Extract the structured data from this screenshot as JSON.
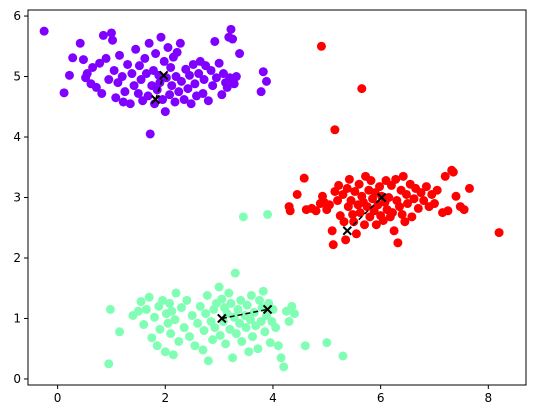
{
  "chart_data": {
    "type": "scatter",
    "title": "",
    "xlabel": "",
    "ylabel": "",
    "xlim": [
      -0.55,
      8.7
    ],
    "ylim": [
      -0.1,
      6.1
    ],
    "xticks": [
      0,
      2,
      4,
      6,
      8
    ],
    "yticks": [
      0,
      1,
      2,
      3,
      4,
      5,
      6
    ],
    "grid": false,
    "legend": "none",
    "series": [
      {
        "color": "#8000ff",
        "points": [
          [
            -0.25,
            5.75
          ],
          [
            0.12,
            4.73
          ],
          [
            0.22,
            5.02
          ],
          [
            0.28,
            5.31
          ],
          [
            0.42,
            5.55
          ],
          [
            0.48,
            5.28
          ],
          [
            0.52,
            4.98
          ],
          [
            0.55,
            5.05
          ],
          [
            0.62,
            4.88
          ],
          [
            0.65,
            5.15
          ],
          [
            0.72,
            4.82
          ],
          [
            0.78,
            5.22
          ],
          [
            0.82,
            4.72
          ],
          [
            0.85,
            5.68
          ],
          [
            0.9,
            5.3
          ],
          [
            0.95,
            4.95
          ],
          [
            1.0,
            5.72
          ],
          [
            1.02,
            5.6
          ],
          [
            1.05,
            5.1
          ],
          [
            1.08,
            4.65
          ],
          [
            1.12,
            4.9
          ],
          [
            1.15,
            5.35
          ],
          [
            1.2,
            5.0
          ],
          [
            1.22,
            4.58
          ],
          [
            1.25,
            4.75
          ],
          [
            1.3,
            5.2
          ],
          [
            1.35,
            4.55
          ],
          [
            1.38,
            5.05
          ],
          [
            1.42,
            4.85
          ],
          [
            1.45,
            5.45
          ],
          [
            1.5,
            4.72
          ],
          [
            1.52,
            5.18
          ],
          [
            1.55,
            4.95
          ],
          [
            1.58,
            4.6
          ],
          [
            1.62,
            5.3
          ],
          [
            1.65,
            5.05
          ],
          [
            1.68,
            4.68
          ],
          [
            1.7,
            5.55
          ],
          [
            1.72,
            4.05
          ],
          [
            1.75,
            4.85
          ],
          [
            1.78,
            5.1
          ],
          [
            1.8,
            4.55
          ],
          [
            1.82,
            5.38
          ],
          [
            1.85,
            4.78
          ],
          [
            1.88,
            5.02
          ],
          [
            1.9,
            4.9
          ],
          [
            1.92,
            5.65
          ],
          [
            1.95,
            4.62
          ],
          [
            1.98,
            5.25
          ],
          [
            2.0,
            4.42
          ],
          [
            2.02,
            4.98
          ],
          [
            2.05,
            5.48
          ],
          [
            2.08,
            4.7
          ],
          [
            2.1,
            5.15
          ],
          [
            2.12,
            4.85
          ],
          [
            2.15,
            5.32
          ],
          [
            2.18,
            4.58
          ],
          [
            2.2,
            5.0
          ],
          [
            2.22,
            5.4
          ],
          [
            2.25,
            4.75
          ],
          [
            2.28,
            5.55
          ],
          [
            2.3,
            4.92
          ],
          [
            2.35,
            4.62
          ],
          [
            2.38,
            5.12
          ],
          [
            2.42,
            4.8
          ],
          [
            2.45,
            5.02
          ],
          [
            2.48,
            4.55
          ],
          [
            2.52,
            5.2
          ],
          [
            2.55,
            4.88
          ],
          [
            2.58,
            4.68
          ],
          [
            2.62,
            5.05
          ],
          [
            2.65,
            5.25
          ],
          [
            2.7,
            4.72
          ],
          [
            2.72,
            4.95
          ],
          [
            2.75,
            5.18
          ],
          [
            2.8,
            4.6
          ],
          [
            2.85,
            5.1
          ],
          [
            2.88,
            4.85
          ],
          [
            2.92,
            5.58
          ],
          [
            2.95,
            4.98
          ],
          [
            3.0,
            5.22
          ],
          [
            3.05,
            4.7
          ],
          [
            3.08,
            5.05
          ],
          [
            3.12,
            4.9
          ],
          [
            3.15,
            4.82
          ],
          [
            3.18,
            5.65
          ],
          [
            3.2,
            4.98
          ],
          [
            3.22,
            5.78
          ],
          [
            3.25,
            5.62
          ],
          [
            3.28,
            4.88
          ],
          [
            3.32,
            5.0
          ],
          [
            3.38,
            5.38
          ],
          [
            3.78,
            4.75
          ],
          [
            3.82,
            5.08
          ],
          [
            3.88,
            4.92
          ]
        ]
      },
      {
        "color": "#ff0000",
        "points": [
          [
            4.9,
            5.5
          ],
          [
            5.15,
            4.12
          ],
          [
            5.65,
            4.8
          ],
          [
            4.3,
            2.85
          ],
          [
            4.32,
            2.78
          ],
          [
            4.45,
            3.05
          ],
          [
            4.58,
            3.32
          ],
          [
            4.62,
            2.8
          ],
          [
            4.72,
            2.82
          ],
          [
            4.8,
            2.78
          ],
          [
            4.88,
            2.9
          ],
          [
            4.92,
            3.02
          ],
          [
            4.95,
            2.92
          ],
          [
            5.0,
            2.8
          ],
          [
            5.05,
            2.88
          ],
          [
            5.1,
            2.45
          ],
          [
            5.12,
            2.22
          ],
          [
            5.15,
            3.1
          ],
          [
            5.2,
            2.95
          ],
          [
            5.22,
            3.2
          ],
          [
            5.25,
            2.7
          ],
          [
            5.3,
            3.05
          ],
          [
            5.32,
            2.6
          ],
          [
            5.35,
            2.3
          ],
          [
            5.38,
            3.15
          ],
          [
            5.4,
            2.85
          ],
          [
            5.42,
            3.3
          ],
          [
            5.45,
            2.95
          ],
          [
            5.48,
            2.72
          ],
          [
            5.5,
            2.6
          ],
          [
            5.52,
            3.1
          ],
          [
            5.55,
            2.4
          ],
          [
            5.58,
            2.88
          ],
          [
            5.6,
            3.22
          ],
          [
            5.62,
            2.75
          ],
          [
            5.65,
            3.02
          ],
          [
            5.68,
            2.92
          ],
          [
            5.7,
            2.55
          ],
          [
            5.72,
            3.35
          ],
          [
            5.75,
            2.85
          ],
          [
            5.78,
            3.12
          ],
          [
            5.8,
            2.68
          ],
          [
            5.82,
            3.28
          ],
          [
            5.85,
            2.98
          ],
          [
            5.88,
            2.78
          ],
          [
            5.9,
            3.08
          ],
          [
            5.92,
            2.55
          ],
          [
            5.95,
            2.88
          ],
          [
            5.98,
            3.18
          ],
          [
            6.0,
            2.7
          ],
          [
            6.02,
            3.02
          ],
          [
            6.05,
            2.62
          ],
          [
            6.08,
            2.92
          ],
          [
            6.1,
            3.28
          ],
          [
            6.12,
            2.8
          ],
          [
            6.15,
            3.0
          ],
          [
            6.18,
            2.68
          ],
          [
            6.2,
            3.2
          ],
          [
            6.22,
            2.75
          ],
          [
            6.25,
            2.45
          ],
          [
            6.28,
            3.3
          ],
          [
            6.3,
            2.95
          ],
          [
            6.32,
            2.25
          ],
          [
            6.35,
            2.85
          ],
          [
            6.38,
            3.12
          ],
          [
            6.4,
            2.72
          ],
          [
            6.42,
            3.35
          ],
          [
            6.45,
            2.6
          ],
          [
            6.48,
            3.05
          ],
          [
            6.5,
            2.9
          ],
          [
            6.55,
            3.22
          ],
          [
            6.58,
            2.68
          ],
          [
            6.62,
            2.98
          ],
          [
            6.65,
            3.15
          ],
          [
            6.7,
            2.82
          ],
          [
            6.75,
            3.08
          ],
          [
            6.8,
            2.95
          ],
          [
            6.85,
            3.18
          ],
          [
            6.9,
            2.85
          ],
          [
            6.95,
            3.05
          ],
          [
            7.0,
            2.9
          ],
          [
            7.05,
            3.12
          ],
          [
            7.15,
            2.75
          ],
          [
            7.2,
            3.35
          ],
          [
            7.25,
            2.78
          ],
          [
            7.32,
            3.45
          ],
          [
            7.35,
            3.42
          ],
          [
            7.4,
            3.02
          ],
          [
            7.48,
            2.85
          ],
          [
            7.55,
            2.8
          ],
          [
            7.65,
            3.15
          ],
          [
            8.2,
            2.42
          ]
        ]
      },
      {
        "color": "#80ffb4",
        "points": [
          [
            0.95,
            0.25
          ],
          [
            0.98,
            1.15
          ],
          [
            1.15,
            0.78
          ],
          [
            1.4,
            1.05
          ],
          [
            1.5,
            1.12
          ],
          [
            1.55,
            1.28
          ],
          [
            1.6,
            0.9
          ],
          [
            1.65,
            1.15
          ],
          [
            1.7,
            1.35
          ],
          [
            1.75,
            0.68
          ],
          [
            1.8,
            1.02
          ],
          [
            1.85,
            0.55
          ],
          [
            1.88,
            1.2
          ],
          [
            1.9,
            0.82
          ],
          [
            1.95,
            1.3
          ],
          [
            2.0,
            0.45
          ],
          [
            2.02,
            1.08
          ],
          [
            2.05,
            0.92
          ],
          [
            2.08,
            1.25
          ],
          [
            2.1,
            0.75
          ],
          [
            2.12,
            1.12
          ],
          [
            2.15,
            0.4
          ],
          [
            2.18,
            0.98
          ],
          [
            2.2,
            1.42
          ],
          [
            2.25,
            0.62
          ],
          [
            2.3,
            1.18
          ],
          [
            2.35,
            0.85
          ],
          [
            2.4,
            1.3
          ],
          [
            2.45,
            0.7
          ],
          [
            2.5,
            1.05
          ],
          [
            2.55,
            0.55
          ],
          [
            2.6,
            0.92
          ],
          [
            2.65,
            1.2
          ],
          [
            2.7,
            0.48
          ],
          [
            2.72,
            0.8
          ],
          [
            2.75,
            1.08
          ],
          [
            2.78,
            1.38
          ],
          [
            2.8,
            0.3
          ],
          [
            2.85,
            0.95
          ],
          [
            2.88,
            0.65
          ],
          [
            2.9,
            1.15
          ],
          [
            2.92,
            0.85
          ],
          [
            2.95,
            1.25
          ],
          [
            3.0,
            1.52
          ],
          [
            3.02,
            0.72
          ],
          [
            3.05,
            1.32
          ],
          [
            3.08,
            0.95
          ],
          [
            3.1,
            1.18
          ],
          [
            3.12,
            0.58
          ],
          [
            3.15,
            1.08
          ],
          [
            3.18,
            1.42
          ],
          [
            3.2,
            0.82
          ],
          [
            3.22,
            1.25
          ],
          [
            3.25,
            0.35
          ],
          [
            3.28,
            1.02
          ],
          [
            3.3,
            1.75
          ],
          [
            3.32,
            0.75
          ],
          [
            3.35,
            1.15
          ],
          [
            3.38,
            0.92
          ],
          [
            3.4,
            1.3
          ],
          [
            3.42,
            0.62
          ],
          [
            3.45,
            2.68
          ],
          [
            3.48,
            1.05
          ],
          [
            3.5,
            0.85
          ],
          [
            3.52,
            1.22
          ],
          [
            3.55,
            0.45
          ],
          [
            3.58,
            0.98
          ],
          [
            3.6,
            1.38
          ],
          [
            3.62,
            0.7
          ],
          [
            3.65,
            1.1
          ],
          [
            3.68,
            0.88
          ],
          [
            3.72,
            0.5
          ],
          [
            3.75,
            1.3
          ],
          [
            3.78,
            0.95
          ],
          [
            3.8,
            1.18
          ],
          [
            3.82,
            1.45
          ],
          [
            3.85,
            0.78
          ],
          [
            3.88,
            1.05
          ],
          [
            3.9,
            2.72
          ],
          [
            3.92,
            1.25
          ],
          [
            3.95,
            0.6
          ],
          [
            3.98,
            0.95
          ],
          [
            4.0,
            1.15
          ],
          [
            4.05,
            0.85
          ],
          [
            4.1,
            0.55
          ],
          [
            4.15,
            0.35
          ],
          [
            4.2,
            0.2
          ],
          [
            4.25,
            1.12
          ],
          [
            4.3,
            0.95
          ],
          [
            4.35,
            1.2
          ],
          [
            4.4,
            1.08
          ],
          [
            4.6,
            0.55
          ],
          [
            5.0,
            0.6
          ],
          [
            5.3,
            0.38
          ]
        ]
      }
    ],
    "centroid_paths": [
      {
        "points": [
          [
            1.82,
            4.62
          ],
          [
            1.97,
            5.02
          ]
        ]
      },
      {
        "points": [
          [
            5.38,
            2.45
          ],
          [
            6.02,
            3.0
          ]
        ]
      },
      {
        "points": [
          [
            3.05,
            1.0
          ],
          [
            3.9,
            1.15
          ]
        ]
      }
    ]
  }
}
